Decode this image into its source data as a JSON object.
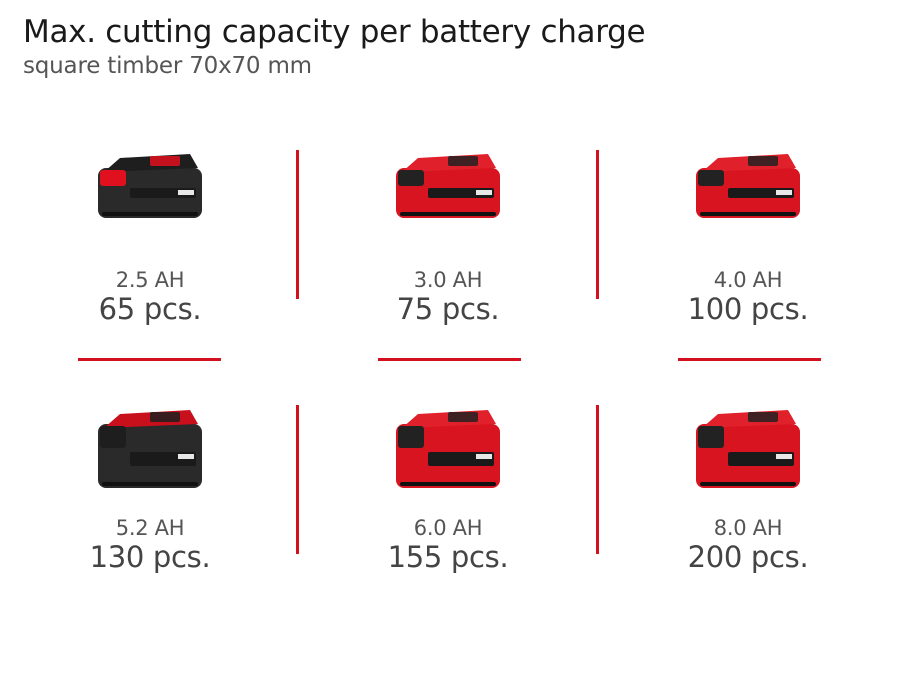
{
  "header": {
    "title": "Max. cutting capacity per battery charge",
    "subtitle": "square timber 70x70 mm"
  },
  "accent_color": "#d4101e",
  "batteries": [
    {
      "capacity": "2.5 AH",
      "pieces": "65 pcs.",
      "icon": "battery-pack-black-icon",
      "body_color": "#2a2a2a",
      "top_color": "#1e1e1e",
      "latch_color": "#e0101e"
    },
    {
      "capacity": "3.0 AH",
      "pieces": "75 pcs.",
      "icon": "battery-pack-red-icon",
      "body_color": "#d81420",
      "top_color": "#e0202a",
      "latch_color": "#222222"
    },
    {
      "capacity": "4.0 AH",
      "pieces": "100 pcs.",
      "icon": "battery-pack-red-icon",
      "body_color": "#d81420",
      "top_color": "#e0202a",
      "latch_color": "#222222"
    },
    {
      "capacity": "5.2 AH",
      "pieces": "130 pcs.",
      "icon": "battery-pack-large-black-icon",
      "body_color": "#2a2a2a",
      "top_color": "#c8101c",
      "latch_color": "#1e1e1e"
    },
    {
      "capacity": "6.0 AH",
      "pieces": "155 pcs.",
      "icon": "battery-pack-large-red-icon",
      "body_color": "#d81420",
      "top_color": "#e0202a",
      "latch_color": "#222222"
    },
    {
      "capacity": "8.0 AH",
      "pieces": "200 pcs.",
      "icon": "battery-pack-large-red-icon",
      "body_color": "#d81420",
      "top_color": "#e0202a",
      "latch_color": "#222222"
    }
  ]
}
